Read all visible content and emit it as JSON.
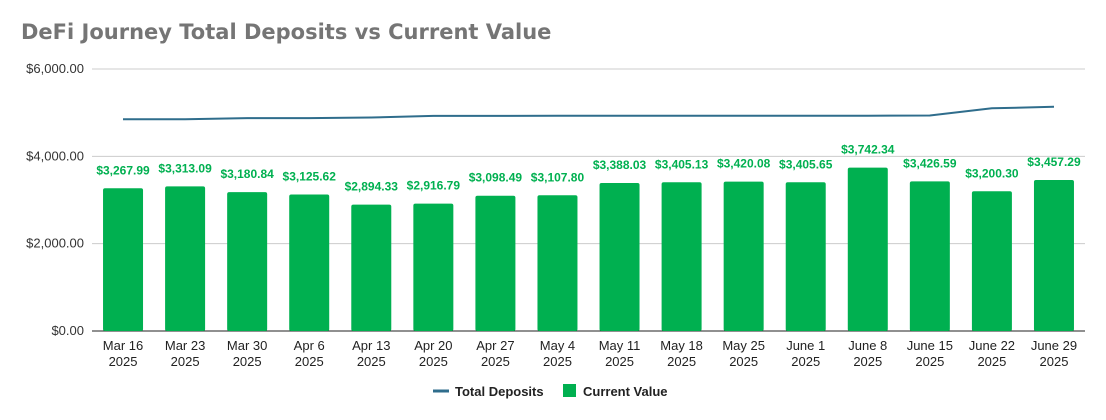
{
  "chart_data": {
    "type": "bar",
    "title": "DeFi Journey Total Deposits vs Current Value",
    "categories": [
      [
        "Mar 16",
        "2025"
      ],
      [
        "Mar 23",
        "2025"
      ],
      [
        "Mar 30",
        "2025"
      ],
      [
        "Apr 6",
        "2025"
      ],
      [
        "Apr 13",
        "2025"
      ],
      [
        "Apr 20",
        "2025"
      ],
      [
        "Apr 27",
        "2025"
      ],
      [
        "May 4",
        "2025"
      ],
      [
        "May 11",
        "2025"
      ],
      [
        "May 18",
        "2025"
      ],
      [
        "May 25",
        "2025"
      ],
      [
        "June 1",
        "2025"
      ],
      [
        "June 8",
        "2025"
      ],
      [
        "June 15",
        "2025"
      ],
      [
        "June 22",
        "2025"
      ],
      [
        "June 29",
        "2025"
      ]
    ],
    "series": [
      {
        "name": "Total Deposits",
        "type": "line",
        "color": "#2f6d8c",
        "values": [
          4850,
          4850,
          4875,
          4875,
          4890,
          4925,
          4925,
          4930,
          4930,
          4930,
          4930,
          4930,
          4930,
          4935,
          5100,
          5135
        ]
      },
      {
        "name": "Current Value",
        "type": "bar",
        "color": "#00b050",
        "values": [
          3267.99,
          3313.09,
          3180.84,
          3125.62,
          2894.33,
          2916.79,
          3098.49,
          3107.8,
          3388.03,
          3405.13,
          3420.08,
          3405.65,
          3742.34,
          3426.59,
          3200.3,
          3457.29
        ],
        "labels": [
          "$3,267.99",
          "$3,313.09",
          "$3,180.84",
          "$3,125.62",
          "$2,894.33",
          "$2,916.79",
          "$3,098.49",
          "$3,107.80",
          "$3,388.03",
          "$3,405.13",
          "$3,420.08",
          "$3,405.65",
          "$3,742.34",
          "$3,426.59",
          "$3,200.30",
          "$3,457.29"
        ]
      }
    ],
    "ylim": [
      0,
      6000
    ],
    "yticks": [
      0,
      2000,
      4000,
      6000
    ],
    "ytick_labels": [
      "$0.00",
      "$2,000.00",
      "$4,000.00",
      "$6,000.00"
    ],
    "grid": true,
    "legend": "bottom",
    "label_color": "#00b050",
    "axis_color": "#222222",
    "grid_color": "#cccccc"
  }
}
